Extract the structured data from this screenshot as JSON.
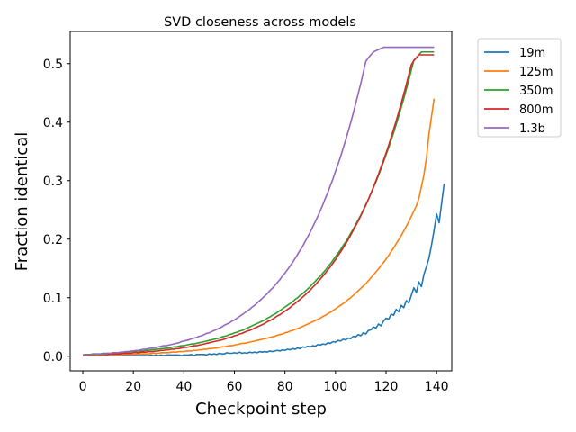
{
  "chart_data": {
    "type": "line",
    "title": "SVD closeness across models",
    "xlabel": "Checkpoint step",
    "ylabel": "Fraction identical",
    "xlim": [
      -5,
      146
    ],
    "ylim": [
      -0.025,
      0.555
    ],
    "xticks": [
      0,
      20,
      40,
      60,
      80,
      100,
      120,
      140
    ],
    "yticks": [
      0.0,
      0.1,
      0.2,
      0.3,
      0.4,
      0.5
    ],
    "xtick_labels": [
      "0",
      "20",
      "40",
      "60",
      "80",
      "100",
      "120",
      "140"
    ],
    "ytick_labels": [
      "0.0",
      "0.1",
      "0.2",
      "0.3",
      "0.4",
      "0.5"
    ],
    "grid": false,
    "legend_position": "outside top-right",
    "x_start": 0,
    "x_step": 1,
    "series": [
      {
        "name": "19m",
        "color": "#1f77b4",
        "values": [
          0.001,
          0.001,
          0.001,
          0.001,
          0.001,
          0.001,
          0.001,
          0.001,
          0.001,
          0.001,
          0.001,
          0.001,
          0.001,
          0.001,
          0.001,
          0.001,
          0.001,
          0.001,
          0.001,
          0.001,
          0.001,
          0.001,
          0.001,
          0.001,
          0.001,
          0.001,
          0.001,
          0.002,
          0.001,
          0.002,
          0.001,
          0.002,
          0.001,
          0.002,
          0.002,
          0.002,
          0.002,
          0.002,
          0.002,
          0.001,
          0.002,
          0.002,
          0.002,
          0.003,
          0.001,
          0.003,
          0.003,
          0.003,
          0.003,
          0.002,
          0.004,
          0.003,
          0.004,
          0.003,
          0.005,
          0.004,
          0.004,
          0.006,
          0.005,
          0.005,
          0.006,
          0.005,
          0.007,
          0.005,
          0.006,
          0.005,
          0.007,
          0.006,
          0.007,
          0.006,
          0.008,
          0.007,
          0.008,
          0.007,
          0.009,
          0.008,
          0.009,
          0.01,
          0.009,
          0.011,
          0.01,
          0.012,
          0.011,
          0.013,
          0.012,
          0.014,
          0.013,
          0.016,
          0.015,
          0.017,
          0.016,
          0.018,
          0.017,
          0.02,
          0.019,
          0.021,
          0.02,
          0.023,
          0.022,
          0.025,
          0.024,
          0.027,
          0.026,
          0.029,
          0.028,
          0.031,
          0.03,
          0.034,
          0.033,
          0.037,
          0.035,
          0.04,
          0.038,
          0.044,
          0.045,
          0.05,
          0.048,
          0.055,
          0.052,
          0.06,
          0.065,
          0.063,
          0.072,
          0.07,
          0.08,
          0.076,
          0.087,
          0.083,
          0.095,
          0.091,
          0.104,
          0.117,
          0.109,
          0.127,
          0.119,
          0.14,
          0.153,
          0.168,
          0.19,
          0.215,
          0.243,
          0.228,
          0.262,
          0.295
        ]
      },
      {
        "name": "125m",
        "color": "#ff7f0e",
        "values": [
          0.001,
          0.001,
          0.001,
          0.001,
          0.001,
          0.001,
          0.001,
          0.002,
          0.001,
          0.002,
          0.002,
          0.002,
          0.002,
          0.002,
          0.002,
          0.002,
          0.003,
          0.003,
          0.003,
          0.003,
          0.003,
          0.003,
          0.004,
          0.004,
          0.004,
          0.004,
          0.004,
          0.005,
          0.005,
          0.005,
          0.005,
          0.006,
          0.006,
          0.006,
          0.006,
          0.007,
          0.007,
          0.007,
          0.008,
          0.008,
          0.008,
          0.009,
          0.009,
          0.009,
          0.01,
          0.01,
          0.011,
          0.011,
          0.012,
          0.012,
          0.013,
          0.013,
          0.014,
          0.014,
          0.015,
          0.016,
          0.016,
          0.017,
          0.018,
          0.018,
          0.019,
          0.02,
          0.021,
          0.022,
          0.022,
          0.023,
          0.024,
          0.025,
          0.026,
          0.027,
          0.028,
          0.029,
          0.03,
          0.031,
          0.032,
          0.033,
          0.034,
          0.036,
          0.037,
          0.038,
          0.04,
          0.041,
          0.043,
          0.044,
          0.046,
          0.047,
          0.049,
          0.051,
          0.053,
          0.055,
          0.057,
          0.059,
          0.061,
          0.063,
          0.065,
          0.068,
          0.07,
          0.073,
          0.075,
          0.078,
          0.081,
          0.084,
          0.087,
          0.09,
          0.093,
          0.097,
          0.1,
          0.104,
          0.108,
          0.112,
          0.116,
          0.12,
          0.124,
          0.129,
          0.134,
          0.139,
          0.144,
          0.149,
          0.155,
          0.16,
          0.166,
          0.172,
          0.179,
          0.185,
          0.192,
          0.199,
          0.206,
          0.214,
          0.222,
          0.23,
          0.239,
          0.248,
          0.257,
          0.27,
          0.29,
          0.31,
          0.34,
          0.38,
          0.41,
          0.44
        ]
      },
      {
        "name": "350m",
        "color": "#2ca02c",
        "values": [
          0.002,
          0.003,
          0.003,
          0.003,
          0.004,
          0.004,
          0.004,
          0.004,
          0.005,
          0.005,
          0.005,
          0.005,
          0.006,
          0.006,
          0.006,
          0.006,
          0.007,
          0.007,
          0.007,
          0.008,
          0.008,
          0.008,
          0.009,
          0.009,
          0.009,
          0.01,
          0.01,
          0.011,
          0.011,
          0.012,
          0.012,
          0.013,
          0.013,
          0.014,
          0.014,
          0.015,
          0.016,
          0.016,
          0.017,
          0.018,
          0.018,
          0.019,
          0.02,
          0.021,
          0.021,
          0.022,
          0.023,
          0.024,
          0.025,
          0.026,
          0.027,
          0.028,
          0.029,
          0.03,
          0.031,
          0.033,
          0.034,
          0.035,
          0.037,
          0.038,
          0.04,
          0.041,
          0.043,
          0.044,
          0.046,
          0.048,
          0.05,
          0.052,
          0.054,
          0.056,
          0.058,
          0.06,
          0.062,
          0.065,
          0.067,
          0.07,
          0.072,
          0.075,
          0.078,
          0.081,
          0.084,
          0.087,
          0.09,
          0.093,
          0.097,
          0.1,
          0.104,
          0.107,
          0.111,
          0.115,
          0.119,
          0.124,
          0.128,
          0.133,
          0.137,
          0.142,
          0.147,
          0.153,
          0.158,
          0.164,
          0.17,
          0.176,
          0.182,
          0.189,
          0.195,
          0.202,
          0.21,
          0.217,
          0.225,
          0.233,
          0.241,
          0.25,
          0.259,
          0.268,
          0.278,
          0.288,
          0.298,
          0.309,
          0.32,
          0.332,
          0.344,
          0.356,
          0.369,
          0.382,
          0.396,
          0.41,
          0.425,
          0.44,
          0.456,
          0.472,
          0.489,
          0.506,
          0.51,
          0.515,
          0.52,
          0.52,
          0.52,
          0.52,
          0.52,
          0.52
        ]
      },
      {
        "name": "800m",
        "color": "#d62728",
        "values": [
          0.002,
          0.002,
          0.002,
          0.002,
          0.002,
          0.003,
          0.003,
          0.003,
          0.003,
          0.003,
          0.003,
          0.004,
          0.004,
          0.004,
          0.004,
          0.004,
          0.005,
          0.005,
          0.005,
          0.005,
          0.006,
          0.006,
          0.006,
          0.007,
          0.007,
          0.007,
          0.008,
          0.008,
          0.008,
          0.009,
          0.009,
          0.01,
          0.01,
          0.011,
          0.011,
          0.012,
          0.012,
          0.013,
          0.013,
          0.014,
          0.015,
          0.015,
          0.016,
          0.017,
          0.018,
          0.018,
          0.019,
          0.02,
          0.021,
          0.022,
          0.023,
          0.024,
          0.025,
          0.026,
          0.027,
          0.028,
          0.029,
          0.031,
          0.032,
          0.033,
          0.035,
          0.036,
          0.038,
          0.039,
          0.041,
          0.043,
          0.044,
          0.046,
          0.048,
          0.05,
          0.052,
          0.054,
          0.056,
          0.059,
          0.061,
          0.063,
          0.066,
          0.069,
          0.071,
          0.074,
          0.077,
          0.08,
          0.083,
          0.087,
          0.09,
          0.094,
          0.097,
          0.101,
          0.105,
          0.109,
          0.113,
          0.118,
          0.122,
          0.127,
          0.132,
          0.137,
          0.142,
          0.148,
          0.153,
          0.159,
          0.165,
          0.172,
          0.178,
          0.185,
          0.192,
          0.199,
          0.207,
          0.215,
          0.223,
          0.231,
          0.24,
          0.249,
          0.258,
          0.268,
          0.278,
          0.289,
          0.3,
          0.311,
          0.323,
          0.335,
          0.347,
          0.36,
          0.374,
          0.388,
          0.402,
          0.417,
          0.432,
          0.448,
          0.464,
          0.481,
          0.498,
          0.505,
          0.51,
          0.515,
          0.515,
          0.515,
          0.515,
          0.515,
          0.515,
          0.515
        ]
      },
      {
        "name": "1.3b",
        "color": "#9467bd",
        "values": [
          0.001,
          0.002,
          0.002,
          0.002,
          0.003,
          0.003,
          0.003,
          0.004,
          0.004,
          0.004,
          0.005,
          0.005,
          0.006,
          0.006,
          0.006,
          0.007,
          0.007,
          0.008,
          0.008,
          0.009,
          0.009,
          0.01,
          0.01,
          0.011,
          0.012,
          0.012,
          0.013,
          0.014,
          0.014,
          0.015,
          0.016,
          0.017,
          0.018,
          0.018,
          0.019,
          0.02,
          0.021,
          0.022,
          0.023,
          0.025,
          0.026,
          0.027,
          0.028,
          0.03,
          0.031,
          0.032,
          0.034,
          0.035,
          0.037,
          0.039,
          0.04,
          0.042,
          0.044,
          0.046,
          0.048,
          0.05,
          0.053,
          0.055,
          0.057,
          0.06,
          0.062,
          0.065,
          0.068,
          0.071,
          0.074,
          0.077,
          0.08,
          0.084,
          0.087,
          0.091,
          0.095,
          0.099,
          0.103,
          0.107,
          0.112,
          0.116,
          0.121,
          0.126,
          0.131,
          0.137,
          0.142,
          0.148,
          0.154,
          0.16,
          0.167,
          0.174,
          0.181,
          0.188,
          0.196,
          0.204,
          0.212,
          0.221,
          0.23,
          0.239,
          0.249,
          0.259,
          0.27,
          0.28,
          0.292,
          0.303,
          0.316,
          0.328,
          0.341,
          0.355,
          0.369,
          0.384,
          0.399,
          0.415,
          0.432,
          0.449,
          0.466,
          0.485,
          0.504,
          0.51,
          0.515,
          0.52,
          0.522,
          0.524,
          0.526,
          0.528,
          0.528,
          0.528,
          0.528,
          0.528,
          0.528,
          0.528,
          0.528,
          0.528,
          0.528,
          0.528,
          0.528,
          0.528,
          0.528,
          0.528,
          0.528,
          0.528,
          0.528,
          0.528,
          0.528,
          0.528
        ]
      }
    ]
  }
}
